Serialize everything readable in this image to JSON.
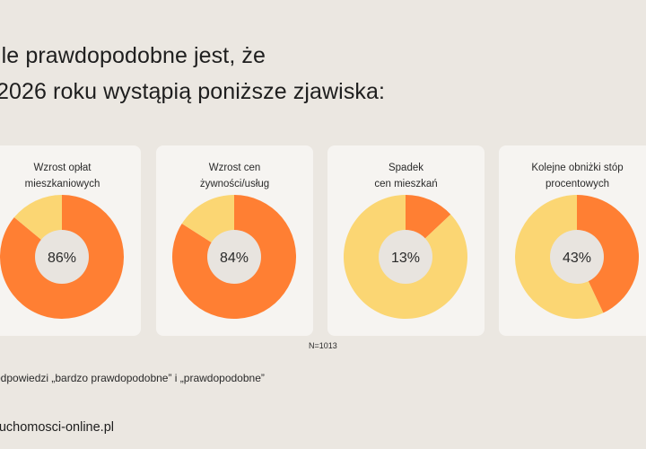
{
  "title": {
    "line1": "ile prawdopodobne jest, że",
    "line2": "2026 roku wystąpią poniższe zjawiska:"
  },
  "colors": {
    "likely": "#ff7f33",
    "rest": "#fbd673",
    "center": "#e8e4df",
    "card": "#f6f4f1",
    "background": "#ebe7e1"
  },
  "chart_data": [
    {
      "type": "pie",
      "title_lines": [
        "Wzrost opłat",
        "mieszkaniowych"
      ],
      "value": 86,
      "label": "86%"
    },
    {
      "type": "pie",
      "title_lines": [
        "Wzrost cen",
        "żywności/usług"
      ],
      "value": 84,
      "label": "84%"
    },
    {
      "type": "pie",
      "title_lines": [
        "Spadek",
        "cen mieszkań"
      ],
      "value": 13,
      "label": "13%"
    },
    {
      "type": "pie",
      "title_lines": [
        "Kolejne obniżki stóp",
        "procentowych"
      ],
      "value": 43,
      "label": "43%"
    }
  ],
  "n_label": "N=1013",
  "footnote": "odpowiedzi „bardzo prawdopodobne” i „prawdopodobne”",
  "source": "ruchomosci-online.pl"
}
